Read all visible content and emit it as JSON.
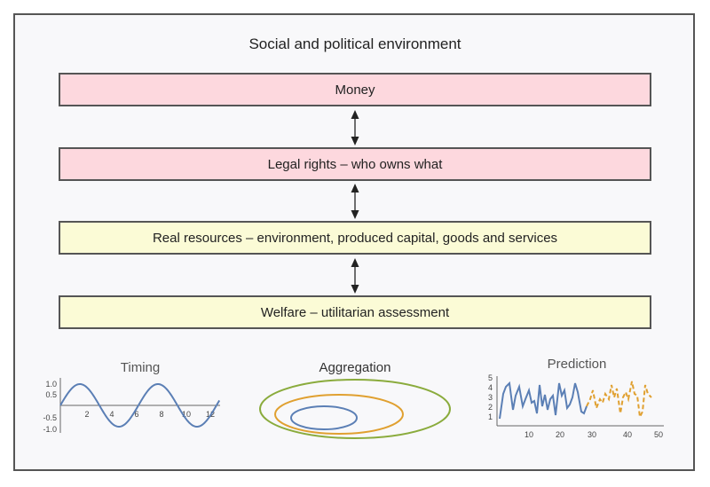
{
  "title": "Social and political environment",
  "layers": [
    {
      "label": "Money"
    },
    {
      "label": "Legal rights – who owns what"
    },
    {
      "label": "Real resources – environment, produced capital, goods and services"
    },
    {
      "label": "Welfare – utilitarian assessment"
    }
  ],
  "panels": {
    "timing": {
      "title": "Timing",
      "y_ticks": [
        "1.0",
        "0.5",
        "-0.5",
        "-1.0"
      ],
      "x_ticks": [
        "2",
        "4",
        "6",
        "8",
        "10",
        "12"
      ]
    },
    "aggregation": {
      "title": "Aggregation"
    },
    "prediction": {
      "title": "Prediction",
      "y_ticks": [
        "5",
        "4",
        "3",
        "2",
        "1"
      ],
      "x_ticks": [
        "10",
        "20",
        "30",
        "40",
        "50"
      ]
    }
  },
  "colors": {
    "pink_fill": "#fdd8de",
    "yellow_fill": "#fbfbd6",
    "blue": "#5b7fb5",
    "orange": "#e0a030",
    "green": "#8aab3c"
  }
}
